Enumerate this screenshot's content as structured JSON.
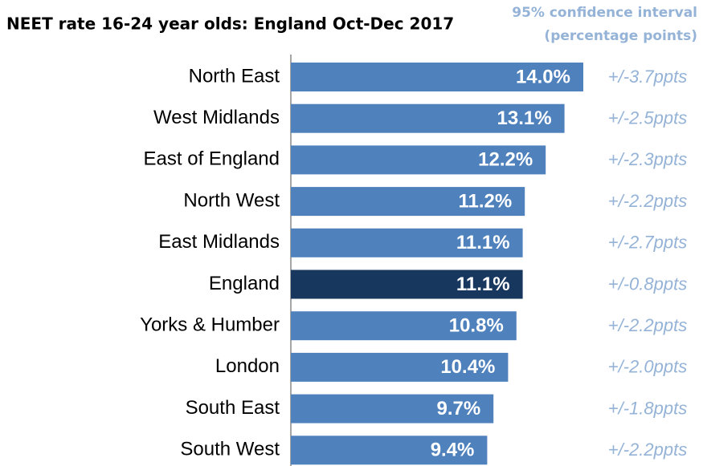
{
  "chart_data": {
    "type": "bar",
    "orientation": "horizontal",
    "title": "NEET rate 16-24 year olds: England Oct-Dec 2017",
    "ci_header": [
      "95% confidence interval",
      "(percentage points)"
    ],
    "categories": [
      "North East",
      "West Midlands",
      "East of England",
      "North West",
      "East Midlands",
      "England",
      "Yorks & Humber",
      "London",
      "South East",
      "South West"
    ],
    "values": [
      14.0,
      13.1,
      12.2,
      11.2,
      11.1,
      11.1,
      10.8,
      10.4,
      9.7,
      9.4
    ],
    "value_labels": [
      "14.0%",
      "13.1%",
      "12.2%",
      "11.2%",
      "11.1%",
      "11.1%",
      "10.8%",
      "10.4%",
      "9.7%",
      "9.4%"
    ],
    "ci_labels": [
      "+/-3.7ppts",
      "+/-2.5ppts",
      "+/-2.3ppts",
      "+/-2.2ppts",
      "+/-2.7ppts",
      "+/-0.8ppts",
      "+/-2.2ppts",
      "+/-2.0ppts",
      "+/-1.8ppts",
      "+/-2.2ppts"
    ],
    "colors": [
      "#4f81bd",
      "#4f81bd",
      "#4f81bd",
      "#4f81bd",
      "#4f81bd",
      "#17375e",
      "#4f81bd",
      "#4f81bd",
      "#4f81bd",
      "#4f81bd"
    ],
    "ci_color": "#95b3d7"
  }
}
